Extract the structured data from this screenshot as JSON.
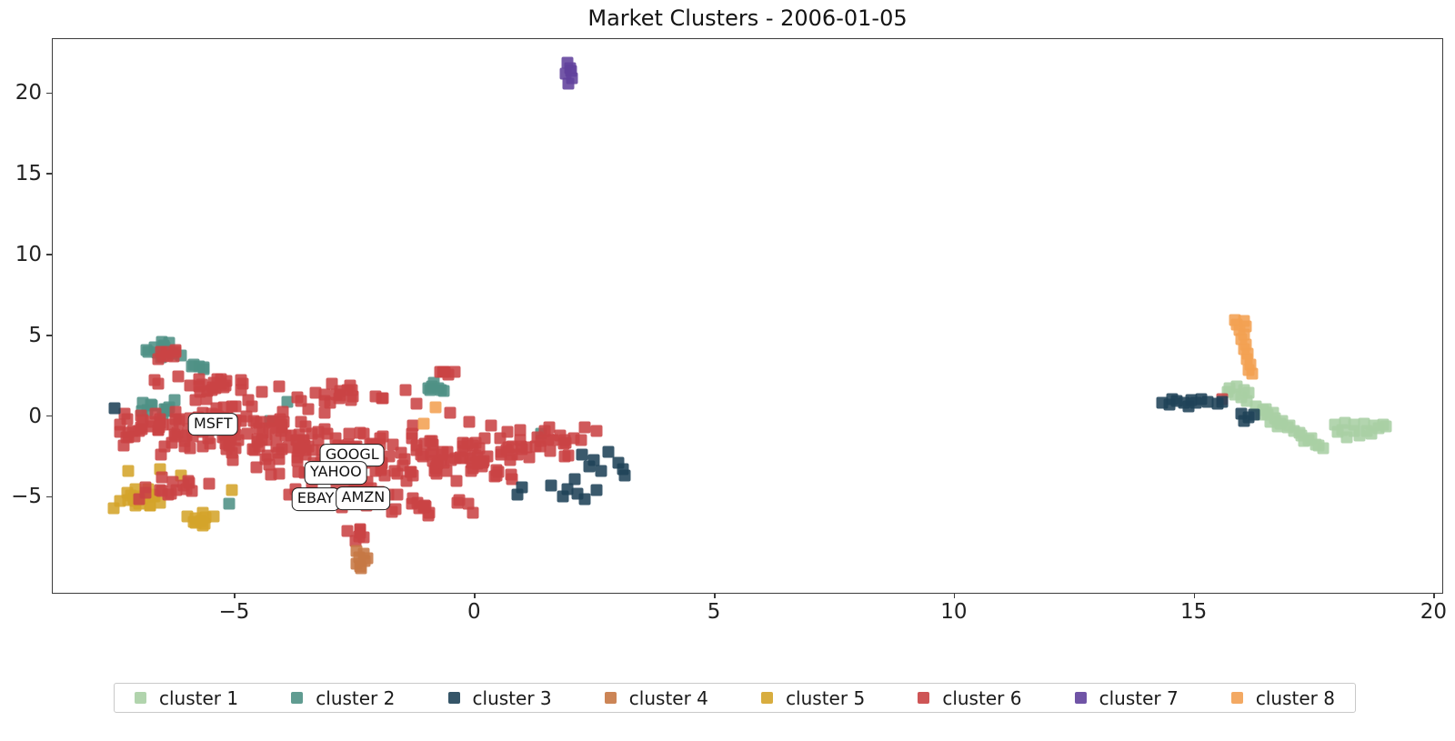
{
  "title": "Market Clusters - 2006-01-05",
  "chart_data": {
    "type": "scatter",
    "title": "Market Clusters - 2006-01-05",
    "xlabel": "",
    "ylabel": "",
    "xlim": [
      -8.8,
      20.2
    ],
    "ylim": [
      -11.0,
      23.4
    ],
    "xticks": [
      -5,
      0,
      5,
      10,
      15,
      20
    ],
    "yticks": [
      -5,
      0,
      5,
      10,
      15,
      20
    ],
    "grid": false,
    "legend_position": "bottom",
    "marker": "square",
    "series": [
      {
        "name": "cluster 1",
        "color": "#a8cfa4",
        "points": [
          [
            15.75,
            1.7
          ],
          [
            15.9,
            1.85
          ],
          [
            16.05,
            1.6
          ],
          [
            15.85,
            1.35
          ],
          [
            16.0,
            1.15
          ],
          [
            16.15,
            1.45
          ],
          [
            15.7,
            1.5
          ],
          [
            16.1,
            0.95
          ],
          [
            16.3,
            0.6
          ],
          [
            16.45,
            0.35
          ],
          [
            16.55,
            0.1
          ],
          [
            16.7,
            -0.15
          ],
          [
            16.8,
            -0.45
          ],
          [
            16.95,
            -0.7
          ],
          [
            17.1,
            -0.95
          ],
          [
            17.25,
            -1.2
          ],
          [
            17.4,
            -1.5
          ],
          [
            17.55,
            -1.75
          ],
          [
            17.7,
            -2.0
          ],
          [
            16.5,
            0.45
          ],
          [
            16.65,
            0.2
          ],
          [
            16.85,
            -0.3
          ],
          [
            17.0,
            -0.6
          ],
          [
            17.2,
            -1.05
          ],
          [
            17.45,
            -1.4
          ],
          [
            17.6,
            -1.85
          ],
          [
            16.4,
            0.1
          ],
          [
            16.75,
            -0.65
          ],
          [
            17.3,
            -1.55
          ],
          [
            16.6,
            -0.35
          ],
          [
            17.95,
            -0.5
          ],
          [
            18.15,
            -0.4
          ],
          [
            18.35,
            -0.55
          ],
          [
            18.55,
            -0.45
          ],
          [
            18.75,
            -0.6
          ],
          [
            18.95,
            -0.55
          ],
          [
            18.1,
            -0.85
          ],
          [
            18.35,
            -0.95
          ],
          [
            18.6,
            -0.9
          ],
          [
            18.85,
            -0.75
          ],
          [
            18.45,
            -1.2
          ],
          [
            18.2,
            -1.3
          ],
          [
            18.7,
            -1.1
          ],
          [
            19.0,
            -0.65
          ],
          [
            18.0,
            -1.0
          ]
        ],
        "blobs": []
      },
      {
        "name": "cluster 2",
        "color": "#4f9185",
        "points": [
          [
            -3.9,
            0.9
          ],
          [
            -4.25,
            -0.3
          ],
          [
            1.4,
            -1.1
          ],
          [
            -5.1,
            -5.4
          ]
        ],
        "blobs": [
          [
            -6.5,
            4.15,
            0.55,
            0.7,
            14,
            11
          ],
          [
            -5.7,
            2.9,
            0.22,
            0.5,
            5,
            12
          ],
          [
            -6.45,
            0.7,
            0.5,
            0.65,
            12,
            13
          ],
          [
            -0.85,
            1.9,
            0.28,
            0.55,
            7,
            14
          ]
        ]
      },
      {
        "name": "cluster 3",
        "color": "#1f4258",
        "points": [
          [
            2.25,
            -2.4
          ],
          [
            2.5,
            -2.7
          ],
          [
            2.4,
            -3.1
          ],
          [
            2.65,
            -3.4
          ],
          [
            3.0,
            -2.9
          ],
          [
            3.1,
            -3.3
          ],
          [
            3.15,
            -3.7
          ],
          [
            2.8,
            -2.2
          ],
          [
            2.1,
            -3.9
          ],
          [
            1.95,
            -4.5
          ],
          [
            2.15,
            -4.8
          ],
          [
            2.3,
            -5.15
          ],
          [
            1.85,
            -5.0
          ],
          [
            1.0,
            -4.4
          ],
          [
            0.9,
            -4.85
          ],
          [
            1.6,
            -4.3
          ],
          [
            2.55,
            -4.6
          ],
          [
            -7.5,
            0.5
          ],
          [
            14.35,
            0.85
          ],
          [
            14.5,
            0.7
          ],
          [
            14.65,
            0.95
          ],
          [
            14.8,
            0.8
          ],
          [
            14.95,
            1.0
          ],
          [
            15.15,
            1.05
          ],
          [
            15.3,
            0.9
          ],
          [
            15.5,
            0.75
          ],
          [
            14.55,
            1.05
          ],
          [
            14.9,
            0.6
          ],
          [
            15.05,
            0.8
          ],
          [
            15.6,
            0.9
          ],
          [
            16.0,
            0.15
          ],
          [
            16.15,
            -0.05
          ],
          [
            16.05,
            -0.3
          ],
          [
            16.25,
            0.1
          ]
        ],
        "blobs": []
      },
      {
        "name": "cluster 4",
        "color": "#c67844",
        "points": [
          [
            -2.45,
            -8.35
          ],
          [
            -2.3,
            -8.5
          ],
          [
            -2.4,
            -8.75
          ],
          [
            -2.28,
            -9.0
          ],
          [
            -2.45,
            -9.15
          ],
          [
            -2.35,
            -9.45
          ],
          [
            -2.22,
            -8.8
          ],
          [
            -2.38,
            -9.3
          ]
        ],
        "blobs": []
      },
      {
        "name": "cluster 5",
        "color": "#d4a42a",
        "points": [
          [
            -7.2,
            -3.4
          ],
          [
            -6.1,
            -3.7
          ],
          [
            -5.05,
            -4.6
          ],
          [
            -6.55,
            -3.3
          ]
        ],
        "blobs": [
          [
            -6.9,
            -5.15,
            0.65,
            0.85,
            22,
            21
          ],
          [
            -5.55,
            -6.3,
            0.45,
            0.65,
            10,
            22
          ]
        ]
      },
      {
        "name": "cluster 6",
        "color": "#c94344",
        "points": [
          [
            15.6,
            1.05
          ],
          [
            -0.5,
            0.2
          ],
          [
            -0.1,
            -0.35
          ],
          [
            0.35,
            -0.6
          ],
          [
            0.7,
            -1.0
          ],
          [
            2.3,
            -0.7
          ],
          [
            2.55,
            -0.95
          ]
        ],
        "blobs": [
          [
            -5.1,
            -0.8,
            2.3,
            2.1,
            120,
            31
          ],
          [
            -2.6,
            -2.3,
            2.0,
            1.9,
            100,
            32
          ],
          [
            -0.3,
            -2.6,
            1.6,
            1.5,
            55,
            33
          ],
          [
            1.5,
            -1.8,
            1.1,
            1.2,
            25,
            34
          ],
          [
            -2.6,
            -4.9,
            1.6,
            0.9,
            35,
            35
          ],
          [
            -1.1,
            -5.6,
            1.2,
            0.7,
            14,
            36
          ],
          [
            -2.9,
            1.3,
            1.9,
            0.85,
            24,
            37
          ],
          [
            -5.9,
            1.9,
            1.2,
            1.0,
            18,
            38
          ],
          [
            -7.3,
            -0.6,
            0.5,
            0.9,
            10,
            39
          ],
          [
            -6.3,
            -4.4,
            0.9,
            0.9,
            16,
            40
          ],
          [
            -6.4,
            3.9,
            0.5,
            0.55,
            8,
            41
          ],
          [
            -5.3,
            2.1,
            0.4,
            0.4,
            5,
            42
          ],
          [
            -2.4,
            -7.3,
            0.35,
            0.5,
            7,
            43
          ],
          [
            -0.65,
            2.75,
            0.3,
            0.25,
            6,
            44
          ]
        ]
      },
      {
        "name": "cluster 7",
        "color": "#61419c",
        "points": [
          [
            1.95,
            21.9
          ],
          [
            2.0,
            21.55
          ],
          [
            1.9,
            21.2
          ],
          [
            2.05,
            20.95
          ],
          [
            1.97,
            20.6
          ],
          [
            2.03,
            21.4
          ]
        ],
        "blobs": []
      },
      {
        "name": "cluster 8",
        "color": "#f2a052",
        "points": [
          [
            15.85,
            5.95
          ],
          [
            16.05,
            5.9
          ],
          [
            15.9,
            5.65
          ],
          [
            16.08,
            5.55
          ],
          [
            15.95,
            5.3
          ],
          [
            16.05,
            5.05
          ],
          [
            16.0,
            4.75
          ],
          [
            16.08,
            4.45
          ],
          [
            16.05,
            4.15
          ],
          [
            16.12,
            3.85
          ],
          [
            16.1,
            3.5
          ],
          [
            16.18,
            3.2
          ],
          [
            16.15,
            2.85
          ],
          [
            16.22,
            2.6
          ],
          [
            -0.8,
            0.55
          ],
          [
            -1.05,
            -0.45
          ]
        ],
        "blobs": []
      }
    ],
    "annotations": [
      {
        "label": "MSFT",
        "x": -5.44,
        "y": -0.51
      },
      {
        "label": "GOOGL",
        "x": -2.54,
        "y": -2.42
      },
      {
        "label": "YAHOO",
        "x": -2.88,
        "y": -3.54
      },
      {
        "label": "EBAY",
        "x": -3.3,
        "y": -5.17
      },
      {
        "label": "AMZN",
        "x": -2.31,
        "y": -5.11
      }
    ]
  }
}
